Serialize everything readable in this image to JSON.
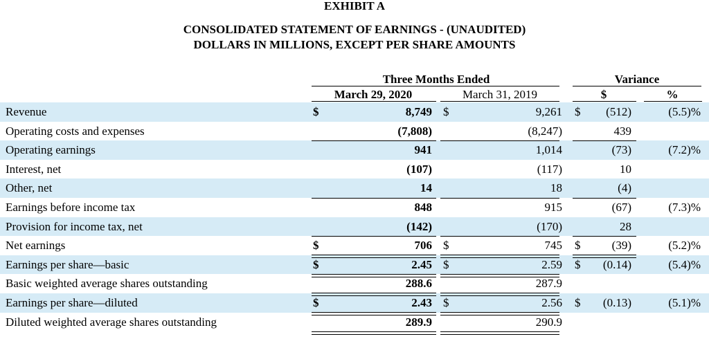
{
  "header": {
    "exhibit": "EXHIBIT A",
    "statement_title": "CONSOLIDATED STATEMENT OF EARNINGS - (UNAUDITED)",
    "units_note": "DOLLARS IN MILLIONS, EXCEPT PER SHARE AMOUNTS"
  },
  "columns": {
    "group_three_months": "Three Months Ended",
    "group_variance": "Variance",
    "current_period": "March 29, 2020",
    "prior_period": "March 31, 2019",
    "variance_dollar": "$",
    "variance_percent": "%"
  },
  "rows": [
    {
      "label": "Revenue",
      "cur_sym": "$",
      "cur": "8,749",
      "prior_sym": "$",
      "prior": "9,261",
      "var_sym": "$",
      "var": "(512)",
      "pct": "(5.5)%"
    },
    {
      "label": "Operating costs and expenses",
      "cur_sym": "",
      "cur": "(7,808)",
      "prior_sym": "",
      "prior": "(8,247)",
      "var_sym": "",
      "var": "439",
      "pct": ""
    },
    {
      "label": "Operating earnings",
      "cur_sym": "",
      "cur": "941",
      "prior_sym": "",
      "prior": "1,014",
      "var_sym": "",
      "var": "(73)",
      "pct": "(7.2)%"
    },
    {
      "label": "Interest, net",
      "cur_sym": "",
      "cur": "(107)",
      "prior_sym": "",
      "prior": "(117)",
      "var_sym": "",
      "var": "10",
      "pct": ""
    },
    {
      "label": "Other, net",
      "cur_sym": "",
      "cur": "14",
      "prior_sym": "",
      "prior": "18",
      "var_sym": "",
      "var": "(4)",
      "pct": ""
    },
    {
      "label": "Earnings before income tax",
      "cur_sym": "",
      "cur": "848",
      "prior_sym": "",
      "prior": "915",
      "var_sym": "",
      "var": "(67)",
      "pct": "(7.3)%"
    },
    {
      "label": "Provision for income tax, net",
      "cur_sym": "",
      "cur": "(142)",
      "prior_sym": "",
      "prior": "(170)",
      "var_sym": "",
      "var": "28",
      "pct": ""
    },
    {
      "label": "Net earnings",
      "cur_sym": "$",
      "cur": "706",
      "prior_sym": "$",
      "prior": "745",
      "var_sym": "$",
      "var": "(39)",
      "pct": "(5.2)%"
    },
    {
      "label": "Earnings per share—basic",
      "cur_sym": "$",
      "cur": "2.45",
      "prior_sym": "$",
      "prior": "2.59",
      "var_sym": "$",
      "var": "(0.14)",
      "pct": "(5.4)%"
    },
    {
      "label": "Basic weighted average shares outstanding",
      "cur_sym": "",
      "cur": "288.6",
      "prior_sym": "",
      "prior": "287.9",
      "var_sym": "",
      "var": "",
      "pct": ""
    },
    {
      "label": "Earnings per share—diluted",
      "cur_sym": "$",
      "cur": "2.43",
      "prior_sym": "$",
      "prior": "2.56",
      "var_sym": "$",
      "var": "(0.13)",
      "pct": "(5.1)%"
    },
    {
      "label": "Diluted weighted average shares outstanding",
      "cur_sym": "",
      "cur": "289.9",
      "prior_sym": "",
      "prior": "290.9",
      "var_sym": "",
      "var": "",
      "pct": ""
    }
  ],
  "colors": {
    "row_shade": "#d6ebf6"
  }
}
